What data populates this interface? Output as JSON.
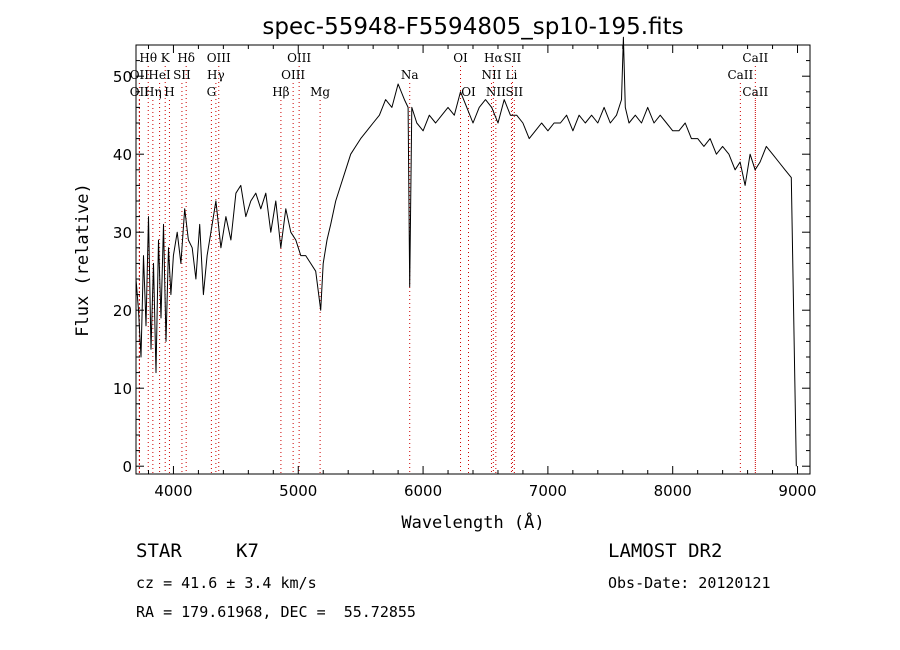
{
  "chart_data": {
    "type": "line",
    "title": "spec-55948-F5594805_sp10-195.fits",
    "xlabel": "Wavelength (Å)",
    "ylabel": "Flux (relative)",
    "xlim": [
      3700,
      9100
    ],
    "ylim": [
      -1,
      54
    ],
    "x_ticks": [
      4000,
      5000,
      6000,
      7000,
      8000,
      9000
    ],
    "y_ticks": [
      0,
      10,
      20,
      30,
      40,
      50
    ],
    "x_tick_labels": [
      "4000",
      "5000",
      "6000",
      "7000",
      "8000",
      "9000"
    ],
    "y_tick_labels": [
      "0",
      "10",
      "20",
      "30",
      "40",
      "50"
    ],
    "line_color": "#000000",
    "marker_color": "#cc0000",
    "grid": false,
    "series": [
      {
        "x": [
          3700,
          3720,
          3740,
          3760,
          3780,
          3800,
          3820,
          3840,
          3860,
          3880,
          3900,
          3920,
          3940,
          3960,
          3980,
          4000,
          4030,
          4060,
          4090,
          4120,
          4150,
          4180,
          4210,
          4240,
          4270,
          4300,
          4340,
          4380,
          4420,
          4460,
          4500,
          4540,
          4580,
          4620,
          4660,
          4700,
          4740,
          4780,
          4820,
          4860,
          4900,
          4940,
          4980,
          5020,
          5060,
          5100,
          5140,
          5180,
          5200,
          5230,
          5260,
          5300,
          5340,
          5380,
          5420,
          5460,
          5500,
          5550,
          5600,
          5650,
          5700,
          5750,
          5800,
          5850,
          5880,
          5893,
          5910,
          5950,
          6000,
          6050,
          6100,
          6150,
          6200,
          6250,
          6300,
          6350,
          6400,
          6450,
          6500,
          6550,
          6600,
          6650,
          6700,
          6750,
          6800,
          6850,
          6900,
          6950,
          7000,
          7050,
          7100,
          7150,
          7200,
          7250,
          7300,
          7350,
          7400,
          7450,
          7500,
          7550,
          7590,
          7605,
          7620,
          7650,
          7700,
          7750,
          7800,
          7850,
          7900,
          7950,
          8000,
          8050,
          8100,
          8150,
          8200,
          8250,
          8300,
          8350,
          8400,
          8450,
          8500,
          8540,
          8580,
          8620,
          8660,
          8700,
          8750,
          8800,
          8850,
          8900,
          8950,
          8990
        ],
        "y": [
          24,
          20,
          14,
          27,
          18,
          32,
          15,
          26,
          12,
          29,
          19,
          31,
          16,
          28,
          22,
          27,
          30,
          26,
          33,
          29,
          28,
          24,
          31,
          22,
          27,
          30,
          34,
          28,
          32,
          29,
          35,
          36,
          32,
          34,
          35,
          33,
          35,
          30,
          34,
          28,
          33,
          30,
          29,
          27,
          27,
          26,
          25,
          20,
          26,
          29,
          31,
          34,
          36,
          38,
          40,
          41,
          42,
          43,
          44,
          45,
          47,
          46,
          49,
          47,
          46,
          23,
          46,
          44,
          43,
          45,
          44,
          45,
          46,
          45,
          48,
          46,
          44,
          46,
          47,
          46,
          44,
          47,
          45,
          45,
          44,
          42,
          43,
          44,
          43,
          44,
          44,
          45,
          43,
          45,
          44,
          45,
          44,
          46,
          44,
          45,
          47,
          55,
          46,
          44,
          45,
          44,
          46,
          44,
          45,
          44,
          43,
          43,
          44,
          42,
          42,
          41,
          42,
          40,
          41,
          40,
          38,
          39,
          36,
          40,
          38,
          39,
          41,
          40,
          39,
          38,
          37,
          0
        ]
      }
    ],
    "lines": [
      {
        "label": "Hθ",
        "x": 3798,
        "row": 0
      },
      {
        "label": "K",
        "x": 3934,
        "row": 0
      },
      {
        "label": "Hδ",
        "x": 4102,
        "row": 0
      },
      {
        "label": "OIII",
        "x": 4363,
        "row": 0
      },
      {
        "label": "OIII",
        "x": 5007,
        "row": 0
      },
      {
        "label": "OI",
        "x": 6300,
        "row": 0
      },
      {
        "label": "Hα",
        "x": 6563,
        "row": 0
      },
      {
        "label": "SII",
        "x": 6716,
        "row": 0
      },
      {
        "label": "CaII",
        "x": 8662,
        "row": 0
      },
      {
        "label": "OII",
        "x": 3727,
        "row": 1
      },
      {
        "label": "HeI",
        "x": 3889,
        "row": 1
      },
      {
        "label": "SII",
        "x": 4068,
        "row": 1
      },
      {
        "label": "Hγ",
        "x": 4340,
        "row": 1
      },
      {
        "label": "OIII",
        "x": 4959,
        "row": 1
      },
      {
        "label": "Na",
        "x": 5893,
        "row": 1
      },
      {
        "label": "NII",
        "x": 6548,
        "row": 1
      },
      {
        "label": "Li",
        "x": 6708,
        "row": 1
      },
      {
        "label": "CaII",
        "x": 8542,
        "row": 1
      },
      {
        "label": "OII",
        "x": 3727,
        "row": 2
      },
      {
        "label": "Hη",
        "x": 3835,
        "row": 2
      },
      {
        "label": "H",
        "x": 3968,
        "row": 2
      },
      {
        "label": "G",
        "x": 4304,
        "row": 2
      },
      {
        "label": "Hβ",
        "x": 4861,
        "row": 2
      },
      {
        "label": "Mg",
        "x": 5175,
        "row": 2
      },
      {
        "label": "OI",
        "x": 6364,
        "row": 2
      },
      {
        "label": "NII",
        "x": 6583,
        "row": 2
      },
      {
        "label": "SII",
        "x": 6731,
        "row": 2
      },
      {
        "label": "CaII",
        "x": 8662,
        "row": 2
      }
    ]
  },
  "info": {
    "star_class": "STAR",
    "subclass": "K7",
    "survey": "LAMOST DR2",
    "cz": "cz = 41.6 ± 3.4 km/s",
    "obs_date": "Obs-Date: 20120121",
    "radec": "RA = 179.61968, DEC =  55.72855"
  }
}
